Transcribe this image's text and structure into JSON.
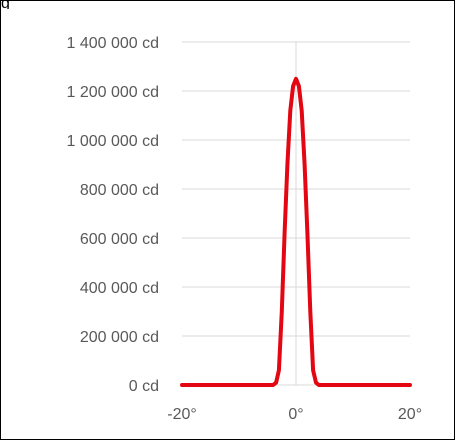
{
  "header": {
    "partial_label": "g"
  },
  "chart_data": {
    "type": "line",
    "title": "",
    "xlabel": "",
    "ylabel": "",
    "xlim": [
      -20,
      20
    ],
    "ylim": [
      0,
      1400000
    ],
    "grid": true,
    "legend": "none",
    "y_ticks": [
      {
        "value": 0,
        "label": "0 cd"
      },
      {
        "value": 200000,
        "label": "200 000 cd"
      },
      {
        "value": 400000,
        "label": "400 000 cd"
      },
      {
        "value": 600000,
        "label": "600 000 cd"
      },
      {
        "value": 800000,
        "label": "800 000 cd"
      },
      {
        "value": 1000000,
        "label": "1 000 000 cd"
      },
      {
        "value": 1200000,
        "label": "1 200 000 cd"
      },
      {
        "value": 1400000,
        "label": "1 400 000 cd"
      }
    ],
    "x_ticks": [
      {
        "value": -20,
        "label": "-20°"
      },
      {
        "value": 0,
        "label": "0°"
      },
      {
        "value": 20,
        "label": "20°"
      }
    ],
    "colors": {
      "line": "#e30613",
      "grid": "#d9d9d9",
      "tick_text": "#595959"
    },
    "series": [
      {
        "name": "",
        "x": [
          -20,
          -4,
          -3.5,
          -3,
          -2.5,
          -2,
          -1.5,
          -1,
          -0.5,
          0,
          0.5,
          1,
          1.5,
          2,
          2.5,
          3,
          3.5,
          4,
          20
        ],
        "values": [
          0,
          0,
          10000,
          60000,
          300000,
          620000,
          900000,
          1120000,
          1220000,
          1250000,
          1220000,
          1120000,
          900000,
          620000,
          300000,
          60000,
          10000,
          0,
          0
        ]
      }
    ]
  }
}
